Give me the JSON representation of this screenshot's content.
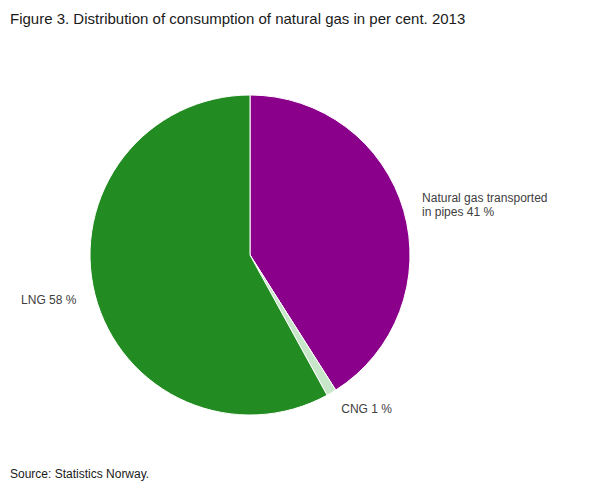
{
  "chart_data": {
    "type": "pie",
    "title": "Figure 3. Distribution of consumption of natural gas in per cent. 2013",
    "source": "Source: Statistics Norway.",
    "categories": [
      "Natural gas transported\nin pipes 41 %",
      "CNG 1 %",
      "LNG 58 %"
    ],
    "values": [
      41,
      1,
      58
    ],
    "colors": [
      "#8B008B",
      "#c8e6c9",
      "#228B22"
    ]
  }
}
